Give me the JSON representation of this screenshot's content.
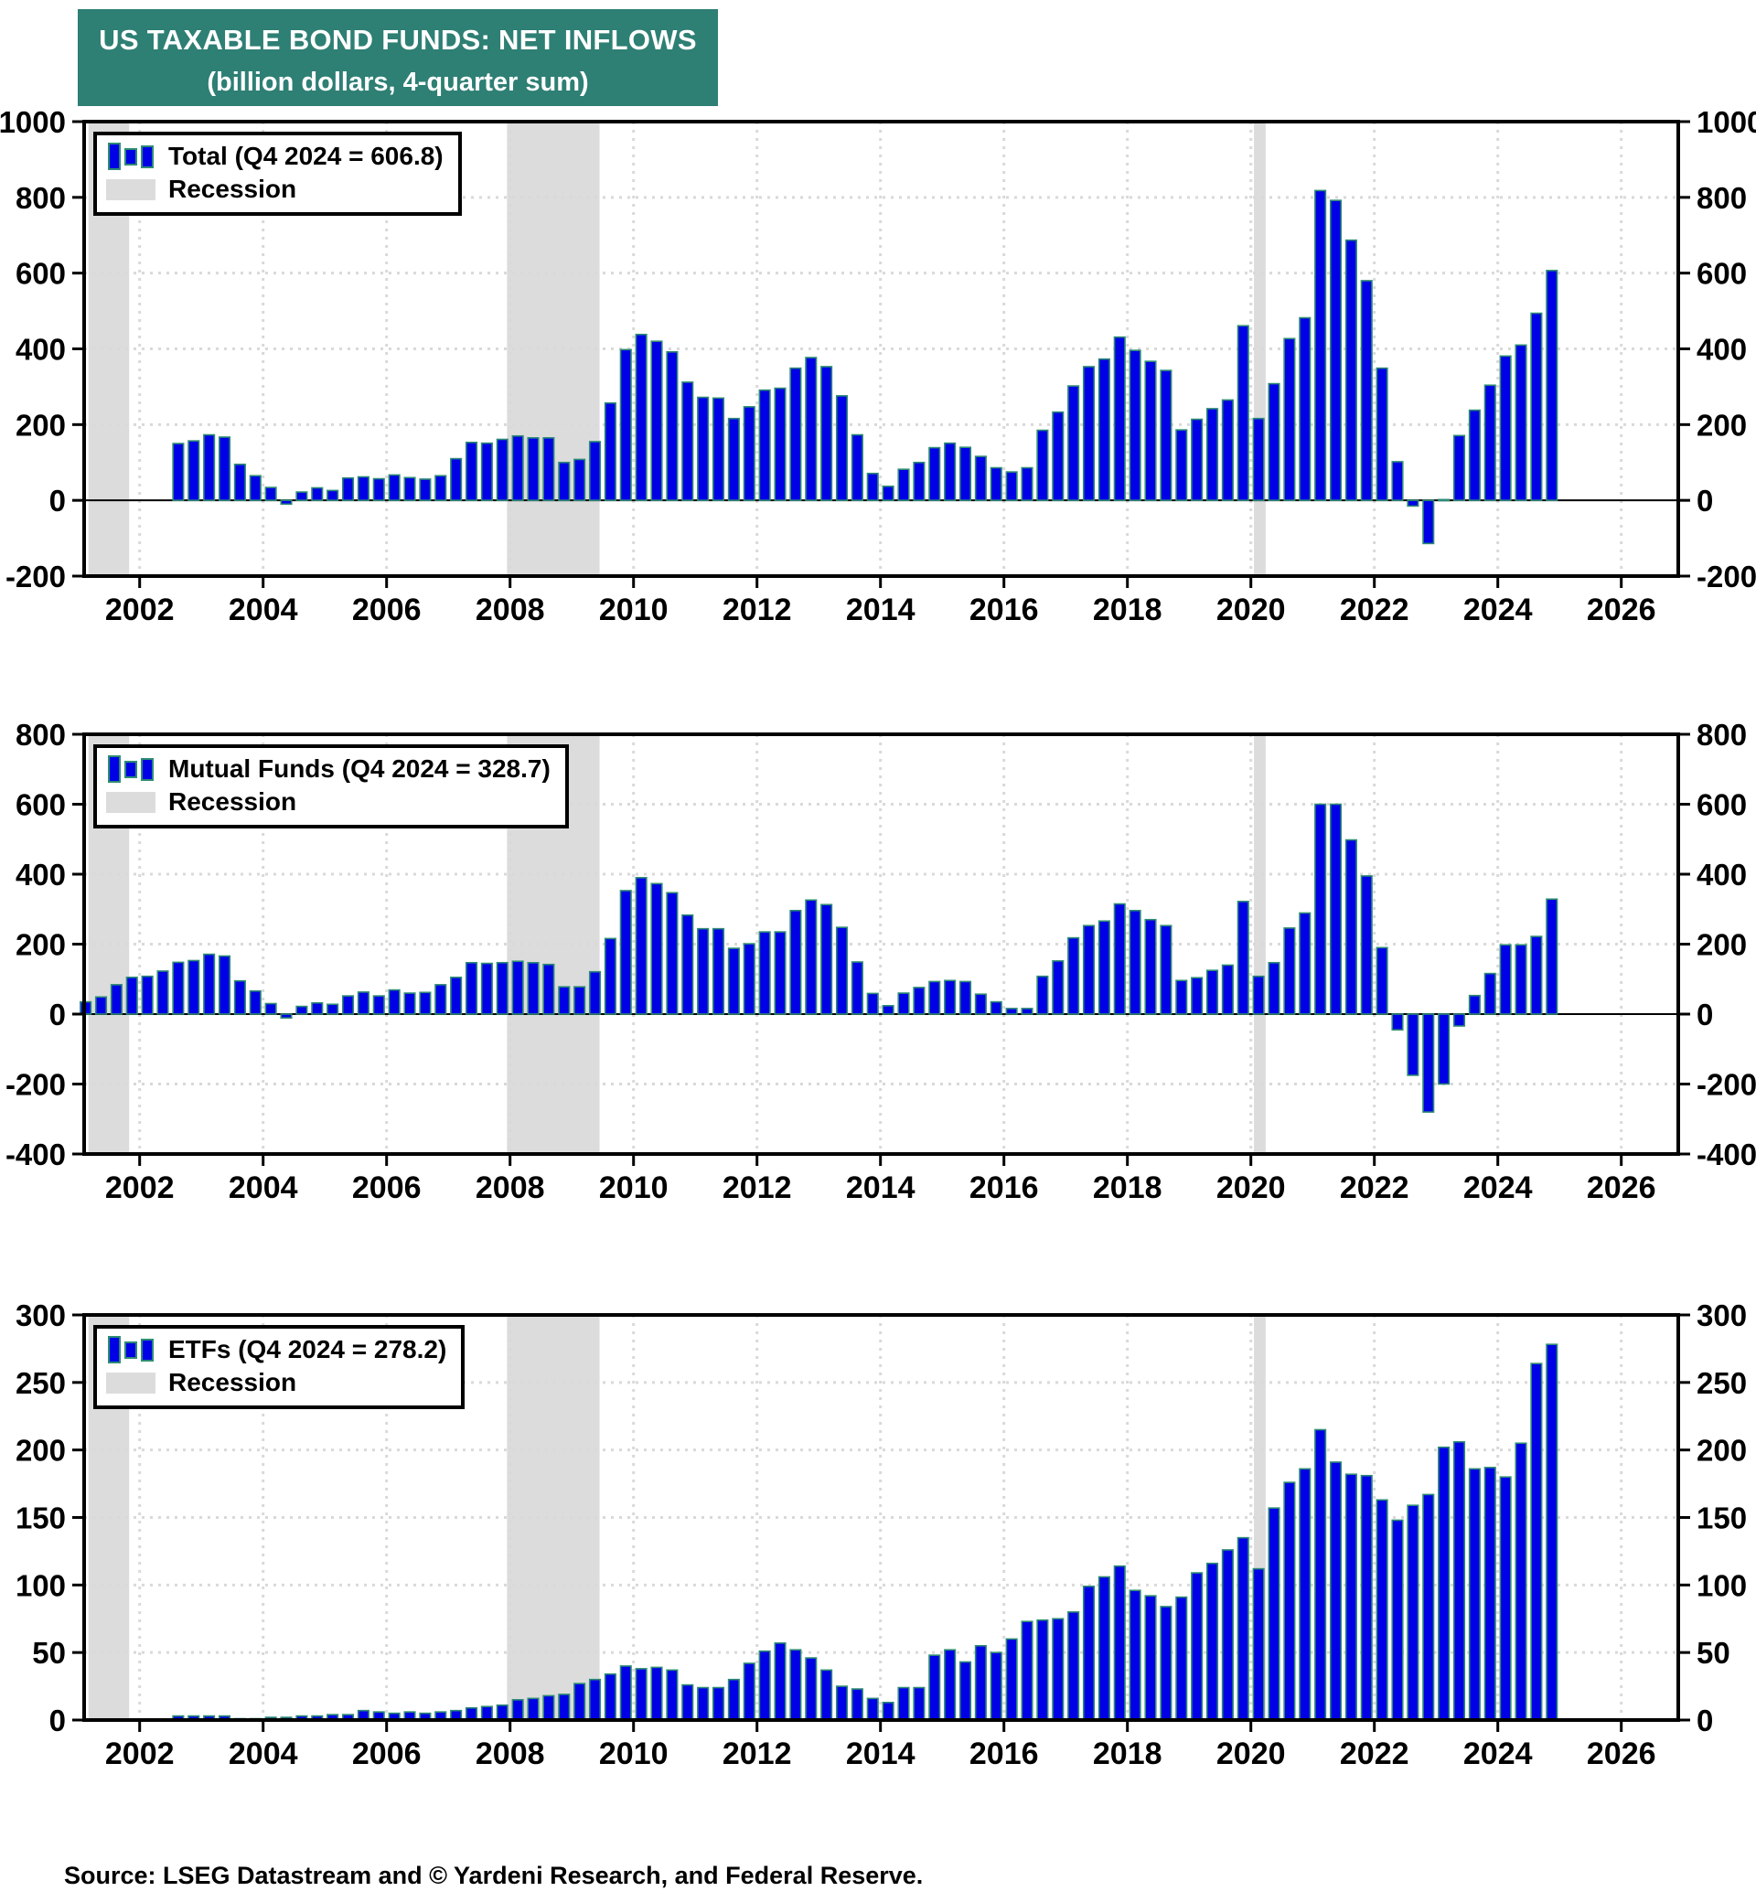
{
  "title": {
    "line1": "US TAXABLE BOND FUNDS: NET INFLOWS",
    "line2": "(billion dollars, 4-quarter sum)"
  },
  "source": "Source: LSEG Datastream and © Yardeni Research, and Federal Reserve.",
  "colors": {
    "title_bg": "#2E7F74",
    "bar_fill": "#0000E6",
    "bar_stroke": "#2E8B74",
    "recession_fill": "#DCDCDC",
    "grid": "#D9D9D9",
    "frame": "#000000"
  },
  "x_axis": {
    "ticks": [
      2002,
      2004,
      2006,
      2008,
      2010,
      2012,
      2014,
      2016,
      2018,
      2020,
      2022,
      2024,
      2026
    ]
  },
  "recessions": [
    {
      "from": 2001.17,
      "to": 2001.83
    },
    {
      "from": 2007.95,
      "to": 2009.45
    },
    {
      "from": 2020.05,
      "to": 2020.24
    }
  ],
  "chart_data": [
    {
      "type": "bar",
      "name": "total",
      "legend_label": "Total (Q4 2024 = 606.8)",
      "recession_label": "Recession",
      "ylabel": "billion dollars, 4-quarter sum",
      "ylim": [
        -200,
        1000
      ],
      "yticks": [
        1000,
        800,
        600,
        400,
        200,
        0,
        -200
      ],
      "frequency": "quarterly",
      "start": "2002Q3",
      "values": [
        150,
        157,
        173,
        167,
        95,
        65,
        34,
        -10,
        22,
        33,
        26,
        59,
        62,
        57,
        67,
        60,
        56,
        65,
        110,
        153,
        151,
        161,
        170,
        165,
        165,
        100,
        108,
        155,
        257,
        398,
        438,
        420,
        392,
        312,
        272,
        270,
        216,
        247,
        291,
        296,
        349,
        377,
        353,
        276,
        173,
        71,
        37,
        82,
        100,
        139,
        151,
        140,
        116,
        86,
        75,
        86,
        185,
        233,
        302,
        353,
        373,
        431,
        396,
        367,
        343,
        186,
        214,
        242,
        265,
        461,
        216,
        308,
        427,
        482,
        818,
        792,
        687,
        580,
        349,
        102,
        -15,
        -114,
        2,
        171,
        238,
        304,
        381,
        410,
        494,
        606.8
      ]
    },
    {
      "type": "bar",
      "name": "mutual-funds",
      "legend_label": "Mutual Funds (Q4 2024 = 328.7)",
      "recession_label": "Recession",
      "ylabel": "billion dollars, 4-quarter sum",
      "ylim": [
        -400,
        800
      ],
      "yticks": [
        800,
        600,
        400,
        200,
        0,
        -200,
        -400
      ],
      "frequency": "quarterly",
      "start": "2001Q1",
      "values": [
        35,
        49,
        84,
        105,
        108,
        123,
        148,
        153,
        171,
        166,
        95,
        66,
        30,
        -11,
        22,
        32,
        28,
        52,
        63,
        52,
        69,
        60,
        62,
        84,
        105,
        147,
        145,
        147,
        151,
        147,
        142,
        78,
        78,
        121,
        216,
        353,
        390,
        373,
        347,
        283,
        244,
        244,
        188,
        201,
        235,
        235,
        296,
        326,
        313,
        248,
        149,
        59,
        24,
        60,
        76,
        93,
        96,
        93,
        57,
        35,
        16,
        16,
        108,
        152,
        218,
        253,
        266,
        315,
        296,
        270,
        253,
        96,
        104,
        125,
        140,
        322,
        108,
        147,
        246,
        289,
        600,
        600,
        498,
        395,
        190,
        -45,
        -175,
        -280,
        -200,
        -34,
        53,
        116,
        198,
        198,
        222,
        328.7
      ]
    },
    {
      "type": "bar",
      "name": "etfs",
      "legend_label": "ETFs (Q4 2024 = 278.2)",
      "recession_label": "Recession",
      "ylabel": "billion dollars, 4-quarter sum",
      "ylim": [
        0,
        300
      ],
      "yticks": [
        300,
        250,
        200,
        150,
        100,
        50,
        0
      ],
      "frequency": "quarterly",
      "start": "2002Q3",
      "values": [
        3,
        3,
        3,
        3,
        1,
        1,
        2,
        2,
        3,
        3,
        4,
        4,
        7,
        6,
        5,
        6,
        5,
        6,
        7,
        9,
        10,
        11,
        15,
        16,
        18,
        19,
        27,
        30,
        34,
        40,
        38,
        39,
        37,
        26,
        24,
        24,
        30,
        42,
        51,
        57,
        52,
        46,
        37,
        25,
        23,
        16,
        13,
        24,
        24,
        48,
        52,
        43,
        55,
        50,
        60,
        73,
        74,
        75,
        80,
        99,
        106,
        114,
        96,
        92,
        84,
        91,
        109,
        116,
        126,
        135,
        112,
        157,
        176,
        186,
        215,
        191,
        182,
        181,
        163,
        148,
        159,
        167,
        202,
        206,
        186,
        187,
        180,
        205,
        264,
        278.2
      ]
    }
  ]
}
